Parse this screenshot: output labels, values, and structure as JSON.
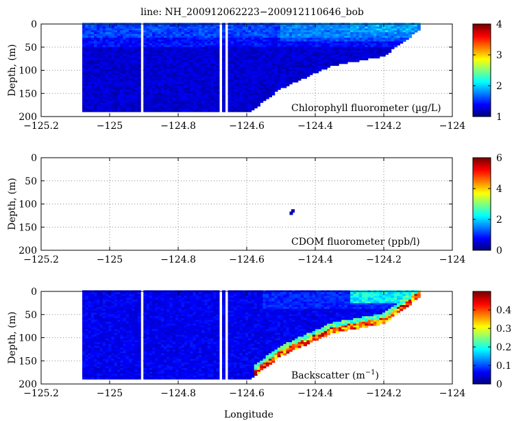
{
  "figure_title": "line: NH_200912062223−200912110646_bob",
  "xlabel": "Longitude",
  "colormap": "jet",
  "chart_data": [
    {
      "type": "heatmap",
      "panel": "top",
      "annotation": "Chlorophyll fluorometer (µg/L)",
      "ylabel": "Depth, (m)",
      "xlim": [
        -125.2,
        -124.0
      ],
      "ylim": [
        200,
        0
      ],
      "xticks": [
        "−125.2",
        "−125",
        "−124.8",
        "−124.6",
        "−124.4",
        "−124.2",
        "−124"
      ],
      "yticks": [
        "0",
        "50",
        "100",
        "150",
        "200"
      ],
      "clim": [
        1,
        4
      ],
      "cbar_ticks": [
        "1",
        "2",
        "3",
        "4"
      ],
      "grid": true
    },
    {
      "type": "heatmap",
      "panel": "middle",
      "annotation": "CDOM fluorometer (ppb/l)",
      "ylabel": "Depth, (m)",
      "xlim": [
        -125.2,
        -124.0
      ],
      "ylim": [
        200,
        0
      ],
      "xticks": [
        "−125.2",
        "−125",
        "−124.8",
        "−124.6",
        "−124.4",
        "−124.2",
        "−124"
      ],
      "yticks": [
        "0",
        "50",
        "100",
        "150",
        "200"
      ],
      "clim": [
        0,
        6
      ],
      "cbar_ticks": [
        "0",
        "2",
        "4",
        "6"
      ],
      "grid": true,
      "points": [
        {
          "lon": -124.47,
          "depth": 120,
          "value": 0.3
        },
        {
          "lon": -124.465,
          "depth": 115,
          "value": 0.3
        }
      ]
    },
    {
      "type": "heatmap",
      "panel": "bottom",
      "annotation_main": "Backscatter (m",
      "annotation_sup": "−1",
      "annotation_end": ")",
      "ylabel": "Depth, (m)",
      "xlim": [
        -125.2,
        -124.0
      ],
      "ylim": [
        200,
        0
      ],
      "xticks": [
        "−125.2",
        "−125",
        "−124.8",
        "−124.6",
        "−124.4",
        "−124.2",
        "−124"
      ],
      "yticks": [
        "0",
        "50",
        "100",
        "150",
        "200"
      ],
      "clim": [
        0,
        0.5
      ],
      "cbar_ticks": [
        "0",
        "0.1",
        "0.2",
        "0.3",
        "0.4"
      ],
      "grid": true
    }
  ]
}
